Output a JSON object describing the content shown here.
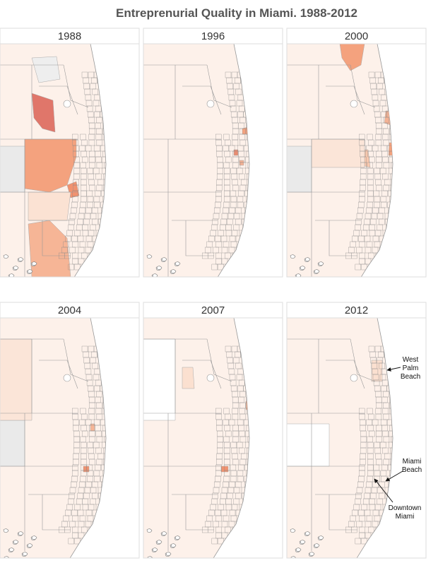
{
  "title": "Entreprenurial Quality in Miami. 1988-2012",
  "panels": [
    {
      "year": "1988"
    },
    {
      "year": "1996"
    },
    {
      "year": "2000"
    },
    {
      "year": "2004"
    },
    {
      "year": "2007"
    },
    {
      "year": "2012"
    }
  ],
  "annotations": [
    {
      "lines": [
        "West",
        "Palm",
        "Beach"
      ]
    },
    {
      "lines": [
        "Miami",
        "Beach"
      ]
    },
    {
      "lines": [
        "Downtown",
        "Miami"
      ]
    }
  ]
}
